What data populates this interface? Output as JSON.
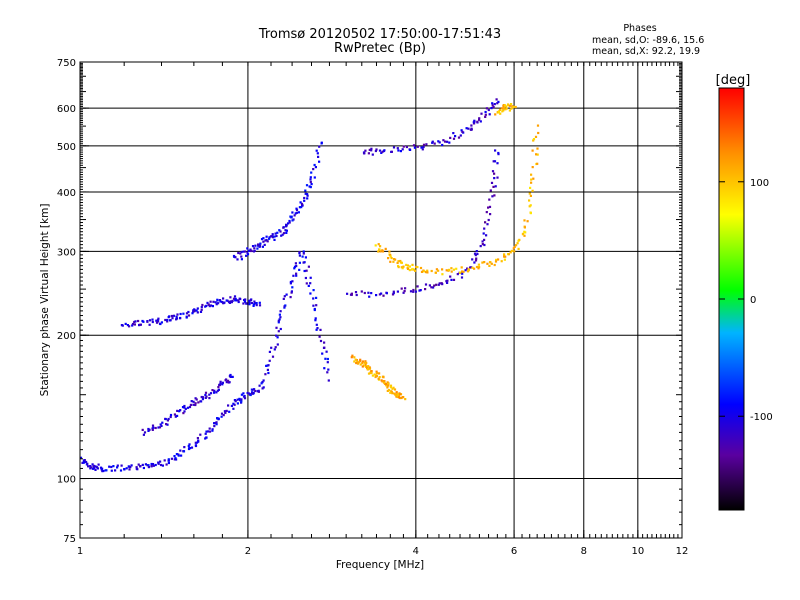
{
  "chart_data": {
    "type": "scatter",
    "title": "Tromsø 20120502 17:50:00-17:51:43",
    "subtitle": "RwPretec (Bp)",
    "phases": {
      "heading": "Phases",
      "line_o": "mean, sd,O: -89.6, 15.6",
      "line_x": "mean, sd,X:  92.2, 19.9"
    },
    "xlabel": "Frequency [MHz]",
    "ylabel": "Stationary phase Virtual Height [km]",
    "x_scale": "log",
    "y_scale": "log",
    "xlim": [
      1,
      12
    ],
    "ylim": [
      75,
      750
    ],
    "x_ticks": [
      1,
      2,
      4,
      6,
      8,
      10,
      12
    ],
    "y_ticks": [
      75,
      100,
      200,
      300,
      400,
      500,
      600,
      750
    ],
    "x_gridlines": [
      2,
      4,
      6,
      8,
      10
    ],
    "y_gridlines": [
      100,
      200,
      300,
      400,
      500,
      600
    ],
    "grid": true,
    "colorbar": {
      "label": "[deg]",
      "range": [
        -180,
        180
      ],
      "ticks": [
        "100",
        "0",
        "-100"
      ],
      "tick_values": [
        100,
        0,
        -100
      ]
    },
    "series": [
      {
        "trace": "o-low",
        "phase": -100,
        "x": [
          1.0,
          1.05,
          1.1,
          1.2,
          1.3,
          1.4,
          1.5,
          1.6,
          1.7,
          1.8,
          1.9,
          2.0,
          2.1
        ],
        "y": [
          110,
          106,
          105,
          105,
          106,
          108,
          112,
          118,
          126,
          135,
          145,
          150,
          155
        ]
      },
      {
        "trace": "o-low-spread",
        "phase": -110,
        "x": [
          1.3,
          1.4,
          1.5,
          1.6,
          1.7,
          1.8,
          1.9
        ],
        "y": [
          125,
          130,
          138,
          145,
          150,
          158,
          165
        ]
      },
      {
        "trace": "o-mid",
        "phase": -105,
        "x": [
          1.2,
          1.3,
          1.4,
          1.5,
          1.6,
          1.7,
          1.8,
          1.9,
          2.0,
          2.1
        ],
        "y": [
          210,
          212,
          214,
          218,
          225,
          232,
          236,
          238,
          235,
          232
        ]
      },
      {
        "trace": "o-cusp",
        "phase": -100,
        "x": [
          1.9,
          2.0,
          2.1,
          2.2,
          2.3,
          2.4,
          2.5,
          2.6,
          2.7
        ],
        "y": [
          290,
          300,
          310,
          320,
          330,
          350,
          380,
          420,
          520
        ]
      },
      {
        "trace": "o-column",
        "phase": -100,
        "x": [
          2.1,
          2.2,
          2.3,
          2.4,
          2.5,
          2.6,
          2.7,
          2.8
        ],
        "y": [
          150,
          180,
          220,
          260,
          300,
          250,
          200,
          160
        ]
      },
      {
        "trace": "o-F2",
        "phase": -115,
        "x": [
          3.0,
          3.5,
          4.0,
          4.5,
          5.0,
          5.3,
          5.5,
          5.6
        ],
        "y": [
          243,
          245,
          250,
          258,
          275,
          320,
          400,
          500
        ]
      },
      {
        "trace": "o-top",
        "phase": -110,
        "x": [
          3.2,
          3.5,
          4.0,
          4.5,
          5.0,
          5.3,
          5.6
        ],
        "y": [
          485,
          488,
          495,
          510,
          545,
          580,
          630
        ]
      },
      {
        "trace": "x-F2",
        "phase": 100,
        "x": [
          3.4,
          3.6,
          3.8,
          4.0,
          4.5,
          5.0,
          5.5,
          6.0,
          6.3,
          6.5,
          6.6
        ],
        "y": [
          310,
          290,
          280,
          276,
          272,
          276,
          285,
          300,
          340,
          430,
          560
        ]
      },
      {
        "trace": "x-lower",
        "phase": 110,
        "x": [
          3.1,
          3.2,
          3.3,
          3.4,
          3.5,
          3.6,
          3.7,
          3.8
        ],
        "y": [
          180,
          175,
          170,
          165,
          160,
          155,
          150,
          148
        ]
      },
      {
        "trace": "x-top",
        "phase": 105,
        "x": [
          5.6,
          5.8,
          6.0
        ],
        "y": [
          590,
          600,
          610
        ]
      }
    ]
  }
}
